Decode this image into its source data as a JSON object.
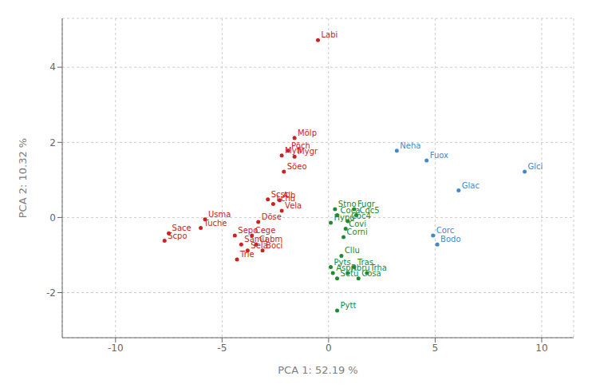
{
  "chart_data": {
    "type": "scatter",
    "xlabel": "PCA 1: 52.19 %",
    "ylabel": "PCA 2: 10.32 %",
    "xlim": [
      -12.5,
      11.5
    ],
    "ylim": [
      -3.2,
      5.3
    ],
    "xticks": [
      -10,
      -5,
      0,
      5,
      10
    ],
    "yticks": [
      -2,
      0,
      2,
      4
    ],
    "grid": true,
    "data_labels": true,
    "labels": [
      "Labi",
      "Mölp",
      "Pöch",
      "Myfi",
      "Mygr",
      "Söeo",
      "Scsc",
      "Alb",
      "Lchu",
      "Vela",
      "Döse",
      "Sepo",
      "Cege",
      "Samu",
      "Cabm",
      "Sela",
      "Boci",
      "Trie",
      "Usma",
      "Tuche",
      "Sace",
      "Scpo",
      "Neha",
      "Fuox",
      "Glci",
      "Glac",
      "Corc",
      "Bodo",
      "Stno",
      "Fugr",
      "Coca",
      "Coc5",
      "Hypu",
      "Coc4",
      "Covi",
      "Corni",
      "Cllu",
      "Pyts",
      "Tras",
      "Aspn",
      "Rbru",
      "Trha",
      "Setu",
      "Cosa",
      "Pytt"
    ],
    "x": [
      -0.5,
      -1.6,
      -1.9,
      -2.2,
      -1.6,
      -2.1,
      -2.85,
      -2.3,
      -2.6,
      -2.2,
      -3.3,
      -4.4,
      -3.6,
      -4.1,
      -3.4,
      -3.8,
      -3.1,
      -4.3,
      -5.8,
      -6.0,
      -7.5,
      -7.7,
      3.2,
      4.6,
      9.2,
      6.1,
      4.9,
      5.1,
      0.3,
      1.2,
      0.4,
      1.3,
      0.1,
      0.9,
      0.8,
      0.7,
      0.6,
      0.1,
      1.2,
      0.2,
      0.9,
      1.8,
      0.4,
      1.4,
      0.4
    ],
    "values": [
      4.72,
      2.12,
      1.78,
      1.65,
      1.62,
      1.22,
      0.48,
      0.46,
      0.36,
      0.18,
      -0.12,
      -0.48,
      -0.48,
      -0.72,
      -0.72,
      -0.88,
      -0.88,
      -1.12,
      -0.05,
      -0.28,
      -0.42,
      -0.62,
      1.78,
      1.52,
      1.22,
      0.72,
      -0.48,
      -0.72,
      0.22,
      0.22,
      0.06,
      0.06,
      -0.14,
      -0.1,
      -0.3,
      -0.52,
      -1.02,
      -1.32,
      -1.32,
      -1.48,
      -1.48,
      -1.48,
      -1.62,
      -1.62,
      -2.48
    ],
    "colors": [
      "#cc2222",
      "#cc2222",
      "#cc2222",
      "#cc2222",
      "#cc2222",
      "#cc2222",
      "#cc2222",
      "#cc2222",
      "#cc2222",
      "#cc2222",
      "#cc2222",
      "#cc2222",
      "#cc2222",
      "#cc2222",
      "#cc2222",
      "#cc2222",
      "#cc2222",
      "#cc2222",
      "#cc2222",
      "#cc2222",
      "#cc2222",
      "#cc2222",
      "#4488cc",
      "#4488cc",
      "#4488cc",
      "#4488cc",
      "#4488cc",
      "#4488cc",
      "#228833",
      "#228833",
      "#228833",
      "#228833",
      "#228833",
      "#228833",
      "#228833",
      "#228833",
      "#228833",
      "#228833",
      "#228833",
      "#228833",
      "#228833",
      "#228833",
      "#228833",
      "#228833",
      "#228833"
    ]
  }
}
